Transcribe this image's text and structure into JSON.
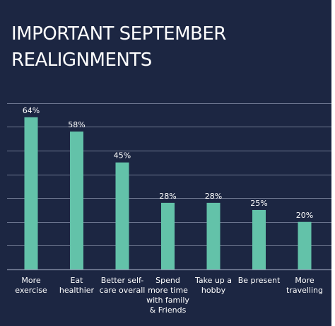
{
  "colors": {
    "background": "#1c2642",
    "bar": "#63c2a9",
    "gridline": "#8a93ab",
    "text": "#ffffff"
  },
  "chart_data": {
    "type": "bar",
    "title": "IMPORTANT SEPTEMBER REALIGNMENTS",
    "categories": [
      "More exercise",
      "Eat healthier",
      "Better self-care overall",
      "Spend more time with family & Friends",
      "Take up a hobby",
      "Be present",
      "More travelling"
    ],
    "values": [
      64,
      58,
      45,
      28,
      28,
      25,
      20
    ],
    "value_labels": [
      "64%",
      "58%",
      "45%",
      "28%",
      "28%",
      "25%",
      "20%"
    ],
    "ylim": [
      0,
      70
    ],
    "grid": true,
    "legend": "none"
  }
}
